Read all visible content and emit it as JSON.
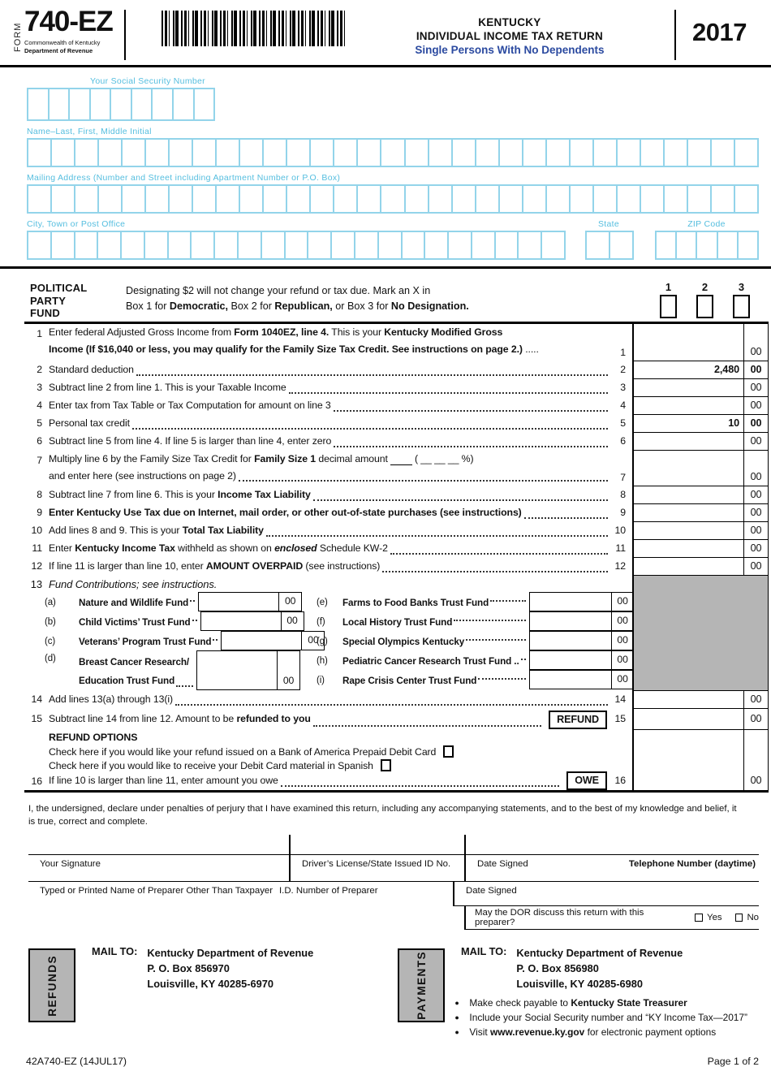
{
  "header": {
    "form_label": "FORM",
    "form_number": "740-EZ",
    "org_line1": "Commonwealth of Kentucky",
    "org_line2": "Department of Revenue",
    "state": "KENTUCKY",
    "title": "INDIVIDUAL INCOME TAX RETURN",
    "subtitle": "Single Persons With No Dependents",
    "year": "2017"
  },
  "colors": {
    "accent_blue": "#2b4aa0",
    "field_blue": "#93d4ea",
    "label_blue": "#55bedf",
    "shade_gray": "#b5b5b5"
  },
  "taxpayer_fields": {
    "ssn_label": "Your Social Security Number",
    "ssn_cells": 9,
    "name_label": "Name–Last, First, Middle Initial",
    "name_cells": 31,
    "address_label": "Mailing Address (Number and Street including Apartment Number or P.O. Box)",
    "address_cells": 31,
    "city_label": "City, Town or Post Office",
    "city_cells": 23,
    "state_label": "State",
    "state_cells": 2,
    "zip_label": "ZIP Code",
    "zip_cells": 5
  },
  "political_party": {
    "title_l1": "POLITICAL",
    "title_l2": "PARTY",
    "title_l3": "FUND",
    "text_l1": "Designating $2 will not change your refund or tax due. Mark an X in",
    "text_l2_segs": [
      {
        "t": "Box 1 for "
      },
      {
        "t": "Democratic,",
        "b": 1
      },
      {
        "t": " Box 2 for "
      },
      {
        "t": "Republican,",
        "b": 1
      },
      {
        "t": " or Box 3 for "
      },
      {
        "t": "No Designation.",
        "b": 1
      }
    ],
    "box_labels": [
      "1",
      "2",
      "3"
    ]
  },
  "lines": [
    {
      "num": "1",
      "value": "",
      "cents": "00",
      "segs_l1": [
        {
          "t": "Enter federal Adjusted Gross Income from "
        },
        {
          "t": "Form 1040EZ, line 4.",
          "b": 1
        },
        {
          "t": " This is your "
        },
        {
          "t": "Kentucky Modified Gross",
          "b": 1
        }
      ],
      "segs_l2": [
        {
          "t": "Income",
          "b": 1
        },
        {
          "t": " (If $16,040 or less, you may qualify for the Family Size Tax Credit. See instructions on page 2.)",
          "b": 1
        },
        {
          "t": " ....."
        }
      ]
    },
    {
      "num": "2",
      "value": "2,480",
      "cents": "00",
      "segs": [
        {
          "t": "Standard deduction "
        }
      ]
    },
    {
      "num": "3",
      "value": "",
      "cents": "00",
      "segs": [
        {
          "t": "Subtract line 2 from line 1. This is your Taxable Income "
        }
      ]
    },
    {
      "num": "4",
      "value": "",
      "cents": "00",
      "segs": [
        {
          "t": "Enter tax from Tax Table or Tax Computation for amount on line 3"
        }
      ]
    },
    {
      "num": "5",
      "value": "10",
      "cents": "00",
      "segs": [
        {
          "t": "Personal tax credit "
        }
      ]
    },
    {
      "num": "6",
      "value": "",
      "cents": "00",
      "segs": [
        {
          "t": "Subtract line 5 from line 4. If line 5 is larger than line 4, enter zero "
        }
      ]
    },
    {
      "num": "7",
      "value": "",
      "cents": "00",
      "segs_l1": [
        {
          "t": "Multiply line 6 by the Family Size Tax Credit for "
        },
        {
          "t": "Family Size 1",
          "b": 1
        },
        {
          "t": " decimal amount "
        },
        {
          "t": "        ",
          "u": 1
        },
        {
          "t": "  ( __ __ __ %)"
        }
      ],
      "segs_l2": [
        {
          "t": "and enter here (see instructions on page 2) "
        }
      ]
    },
    {
      "num": "8",
      "value": "",
      "cents": "00",
      "segs": [
        {
          "t": "Subtract line 7 from line 6. This is your "
        },
        {
          "t": "Income Tax Liability",
          "b": 1
        },
        {
          "t": " "
        }
      ]
    },
    {
      "num": "9",
      "value": "",
      "cents": "00",
      "segs": [
        {
          "t": "Enter Kentucky Use Tax due on Internet, mail order, or other out-of-state purchases (see instructions) ",
          "b": 1
        }
      ]
    },
    {
      "num": "10",
      "value": "",
      "cents": "00",
      "segs": [
        {
          "t": "Add lines 8 and 9. This is your "
        },
        {
          "t": "Total Tax Liability",
          "b": 1
        },
        {
          "t": " "
        }
      ]
    },
    {
      "num": "11",
      "value": "",
      "cents": "00",
      "segs": [
        {
          "t": "Enter "
        },
        {
          "t": "Kentucky Income Tax",
          "b": 1
        },
        {
          "t": " withheld as shown on "
        },
        {
          "t": "enclosed",
          "b": 1,
          "i": 1
        },
        {
          "t": " Schedule KW-2 "
        }
      ]
    },
    {
      "num": "12",
      "value": "",
      "cents": "00",
      "segs": [
        {
          "t": "If line 11 is larger than line 10, enter "
        },
        {
          "t": "AMOUNT OVERPAID",
          "b": 1
        },
        {
          "t": " (see instructions) "
        }
      ]
    },
    {
      "num": "13",
      "segs": [
        {
          "t": "Fund Contributions; see instructions.",
          "i": 1
        }
      ]
    },
    {
      "num": "14",
      "value": "",
      "cents": "00",
      "segs": [
        {
          "t": "Add lines 13(a) through 13(i)"
        }
      ]
    },
    {
      "num": "15",
      "value": "",
      "cents": "00",
      "segs": [
        {
          "t": "Subtract line 14 from line 12. Amount to be "
        },
        {
          "t": "refunded to you",
          "b": 1
        },
        {
          "t": " "
        }
      ]
    },
    {
      "num": "16",
      "value": "",
      "cents": "00",
      "segs": [
        {
          "t": "If line 10 is larger than line 11, enter amount you owe"
        }
      ]
    }
  ],
  "funds": {
    "left": [
      {
        "marker": "(a)",
        "label": "Nature and Wildlife Fund",
        "cents": "00"
      },
      {
        "marker": "(b)",
        "label": "Child Victims’ Trust Fund",
        "cents": "00"
      },
      {
        "marker": "(c)",
        "label": "Veterans’ Program Trust Fund",
        "cents": "00"
      },
      {
        "marker": "(d)",
        "label_l1": "Breast Cancer Research/",
        "label_l2": "Education Trust Fund",
        "cents": "00"
      }
    ],
    "right": [
      {
        "marker": "(e)",
        "label": "Farms to Food Banks Trust Fund",
        "cents": "00"
      },
      {
        "marker": "(f)",
        "label": "Local History Trust Fund",
        "cents": "00"
      },
      {
        "marker": "(g)",
        "label": "Special Olympics Kentucky",
        "cents": "00"
      },
      {
        "marker": "(h)",
        "label": "Pediatric Cancer Research Trust Fund ..",
        "cents": "00"
      },
      {
        "marker": "(i)",
        "label": "Rape Crisis Center Trust Fund",
        "cents": "00"
      }
    ]
  },
  "tags": {
    "refund": "REFUND",
    "owe": "OWE"
  },
  "refund_options": {
    "title": "REFUND OPTIONS",
    "line1": "Check here if you would like your refund issued on a Bank of America Prepaid Debit Card",
    "line2": "Check here if you would like to receive your Debit Card material in Spanish"
  },
  "declaration": "I, the undersigned, declare under penalties of perjury that I have examined this return, including any accompanying statements, and to the best of my knowledge and belief, it is true, correct and complete.",
  "signature": {
    "your_signature": "Your Signature",
    "drivers_license": "Driver’s License/State Issued ID No.",
    "date_signed": "Date Signed",
    "telephone": "Telephone Number (daytime)",
    "preparer_name": "Typed or Printed Name of Preparer Other Than Taxpayer",
    "preparer_id": "I.D. Number of Preparer",
    "date_signed2": "Date Signed",
    "dor_question": "May the DOR discuss this return with this preparer?",
    "yes_label": "Yes",
    "no_label": "No"
  },
  "mailing": {
    "refunds": {
      "tab": "REFUNDS",
      "mail_to": "MAIL TO:",
      "line1": "Kentucky Department of Revenue",
      "line2": "P. O. Box 856970",
      "line3": "Louisville, KY 40285-6970"
    },
    "payments": {
      "tab": "PAYMENTS",
      "mail_to": "MAIL TO:",
      "line1": "Kentucky Department of Revenue",
      "line2": "P. O. Box 856980",
      "line3": "Louisville, KY 40285-6980",
      "bullet1_segs": [
        {
          "t": "Make check payable to "
        },
        {
          "t": "Kentucky State Treasurer",
          "b": 1
        }
      ],
      "bullet2_segs": [
        {
          "t": "Include your Social Security number and “KY Income Tax—2017”"
        }
      ],
      "bullet3_segs": [
        {
          "t": "Visit "
        },
        {
          "t": "www.revenue.ky.gov",
          "b": 1
        },
        {
          "t": " for electronic payment options"
        }
      ]
    }
  },
  "footer": {
    "left": "42A740-EZ (14JUL17)",
    "right": "Page 1 of 2"
  }
}
